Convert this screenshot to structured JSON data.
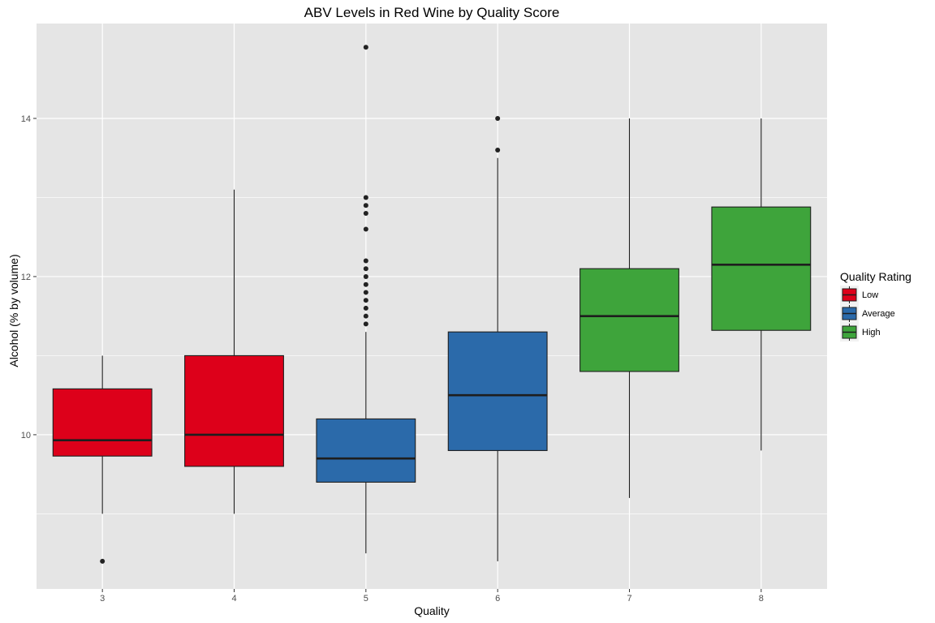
{
  "chart_data": {
    "type": "box",
    "title": "ABV Levels in Red Wine by Quality Score",
    "xlabel": "Quality",
    "ylabel": "Alcohol (% by volume)",
    "ylim": [
      8.05,
      15.2
    ],
    "y_ticks": [
      10,
      12,
      14
    ],
    "y_minor_ticks": [
      9,
      11,
      13
    ],
    "grid": true,
    "categories": [
      "3",
      "4",
      "5",
      "6",
      "7",
      "8"
    ],
    "boxes": [
      {
        "quality": "3",
        "rating": "Low",
        "whisker_low": 9.0,
        "q1": 9.73,
        "median": 9.93,
        "q3": 10.58,
        "whisker_high": 11.0,
        "outliers": [
          8.4
        ]
      },
      {
        "quality": "4",
        "rating": "Low",
        "whisker_low": 9.0,
        "q1": 9.6,
        "median": 10.0,
        "q3": 11.0,
        "whisker_high": 13.1,
        "outliers": []
      },
      {
        "quality": "5",
        "rating": "Average",
        "whisker_low": 8.5,
        "q1": 9.4,
        "median": 9.7,
        "q3": 10.2,
        "whisker_high": 11.3,
        "outliers": [
          11.4,
          11.5,
          11.6,
          11.7,
          11.8,
          11.9,
          12.0,
          12.1,
          12.2,
          12.6,
          12.8,
          12.9,
          13.0,
          14.9
        ]
      },
      {
        "quality": "6",
        "rating": "Average",
        "whisker_low": 8.4,
        "q1": 9.8,
        "median": 10.5,
        "q3": 11.3,
        "whisker_high": 13.5,
        "outliers": [
          13.6,
          14.0
        ]
      },
      {
        "quality": "7",
        "rating": "High",
        "whisker_low": 9.2,
        "q1": 10.8,
        "median": 11.5,
        "q3": 12.1,
        "whisker_high": 14.0,
        "outliers": []
      },
      {
        "quality": "8",
        "rating": "High",
        "whisker_low": 9.8,
        "q1": 11.32,
        "median": 12.15,
        "q3": 12.88,
        "whisker_high": 14.0,
        "outliers": []
      }
    ],
    "legend": {
      "title": "Quality Rating",
      "placement": "right",
      "items": [
        {
          "label": "Low",
          "color": "#dd001a"
        },
        {
          "label": "Average",
          "color": "#2b6aaa"
        },
        {
          "label": "High",
          "color": "#3ea43b"
        }
      ]
    },
    "colors": {
      "panel": "#e5e5e5",
      "grid": "#ffffff",
      "outline": "#1e1e1e"
    }
  }
}
